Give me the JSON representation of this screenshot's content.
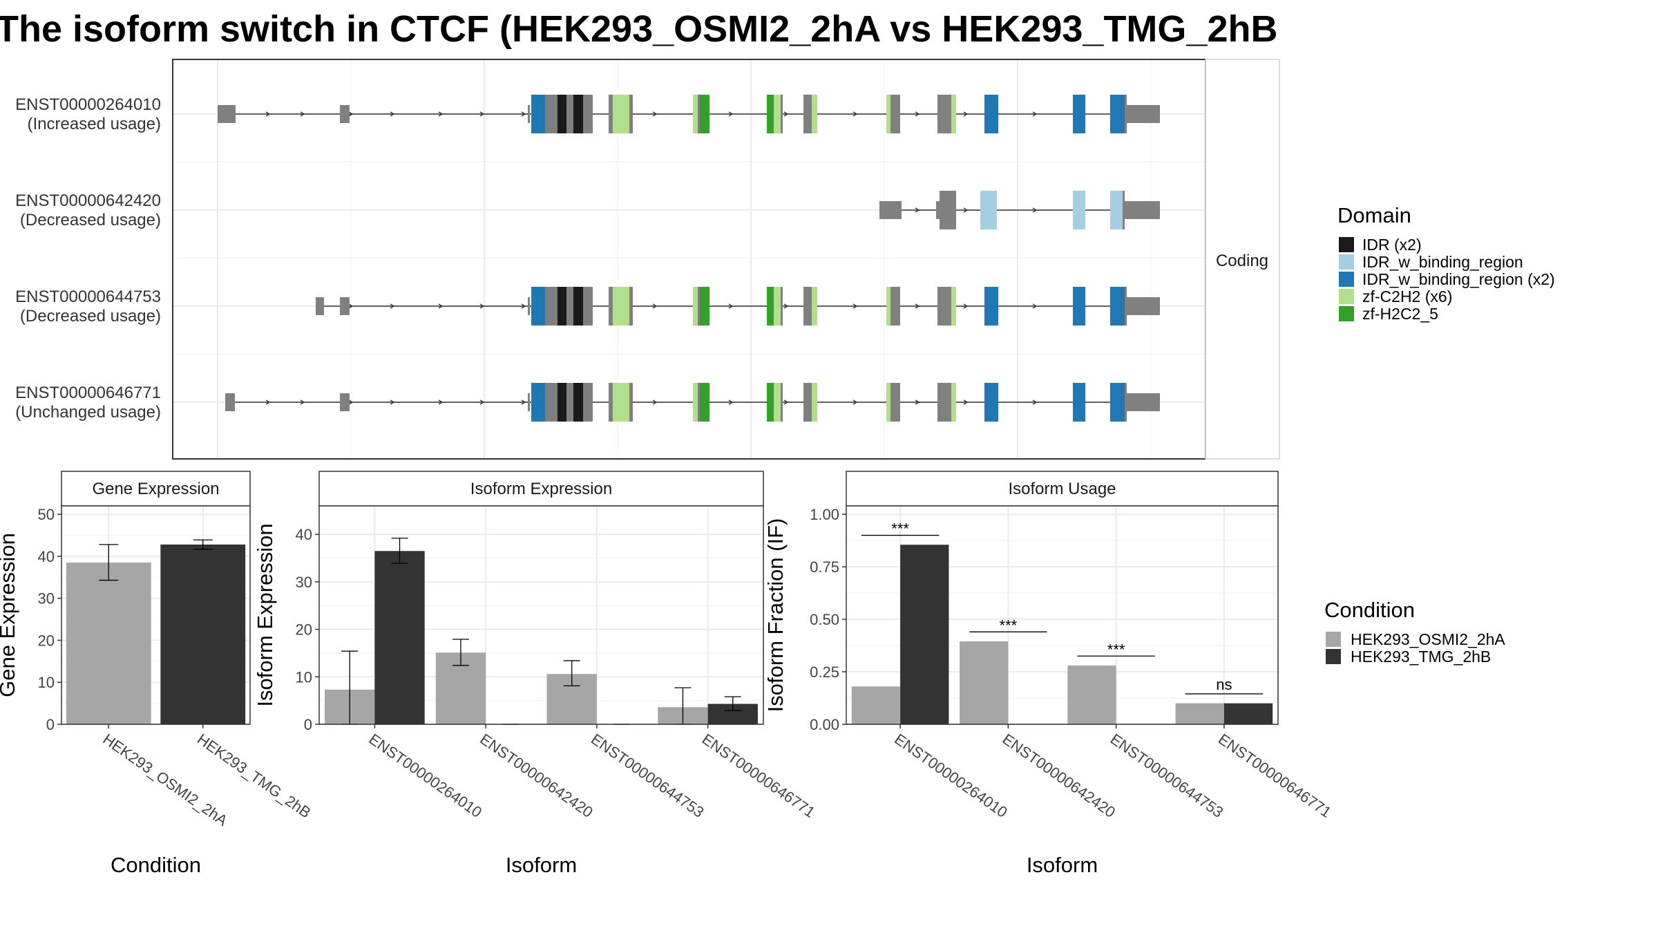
{
  "title": "The isoform switch in CTCF (HEK293_OSMI2_2hA vs HEK293_TMG_2hB",
  "colors": {
    "osmi": "#a6a6a6",
    "tmg": "#333333",
    "utr": "#808080",
    "IDR": "#1a1a1a",
    "IDR_w_binding_region": "#a6cee3",
    "IDR_w_binding_region_x2": "#1f78b4",
    "zf_C2H2": "#b2df8a",
    "zf_H2C2_5": "#33a02c"
  },
  "structure": {
    "strip_label": "Coding",
    "isoforms": [
      {
        "id": "ENST00000264010",
        "usage": "(Increased usage)"
      },
      {
        "id": "ENST00000642420",
        "usage": "(Decreased usage)"
      },
      {
        "id": "ENST00000644753",
        "usage": "(Decreased usage)"
      },
      {
        "id": "ENST00000646771",
        "usage": "(Unchanged usage)"
      }
    ]
  },
  "legend_domain": {
    "title": "Domain",
    "items": [
      {
        "label": "IDR (x2)",
        "color": "#1a1a1a"
      },
      {
        "label": "IDR_w_binding_region",
        "color": "#a6cee3"
      },
      {
        "label": "IDR_w_binding_region (x2)",
        "color": "#1f78b4"
      },
      {
        "label": "zf-C2H2 (x6)",
        "color": "#b2df8a"
      },
      {
        "label": "zf-H2C2_5",
        "color": "#33a02c"
      }
    ]
  },
  "legend_condition": {
    "title": "Condition",
    "items": [
      {
        "label": "HEK293_OSMI2_2hA",
        "color": "#a6a6a6"
      },
      {
        "label": "HEK293_TMG_2hB",
        "color": "#333333"
      }
    ]
  },
  "chart_data": [
    {
      "type": "bar",
      "strip": "Gene Expression",
      "xlabel": "Condition",
      "ylabel": "Gene Expression",
      "ylim": [
        0,
        52
      ],
      "yticks": [
        "0",
        "10",
        "20",
        "30",
        "40",
        "50"
      ],
      "categories": [
        "HEK293_OSMI2_2hA",
        "HEK293_TMG_2hB"
      ],
      "values": [
        38.5,
        42.8
      ],
      "err_low": [
        34.3,
        41.7
      ],
      "err_high": [
        42.8,
        43.9
      ]
    },
    {
      "type": "bar",
      "strip": "Isoform Expression",
      "xlabel": "Isoform",
      "ylabel": "Isoform Expression",
      "ylim": [
        0,
        46
      ],
      "yticks": [
        "0",
        "10",
        "20",
        "30",
        "40"
      ],
      "categories": [
        "ENST00000264010",
        "ENST00000642420",
        "ENST00000644753",
        "ENST00000646771"
      ],
      "series": [
        {
          "name": "HEK293_OSMI2_2hA",
          "values": [
            7.3,
            15.1,
            10.6,
            3.6
          ],
          "err_low": [
            0,
            12.4,
            8.1,
            0
          ],
          "err_high": [
            15.4,
            17.9,
            13.4,
            7.7
          ]
        },
        {
          "name": "HEK293_TMG_2hB",
          "values": [
            36.5,
            0,
            0,
            4.3
          ],
          "err_low": [
            33.9,
            0,
            0,
            2.9
          ],
          "err_high": [
            39.2,
            0,
            0,
            5.8
          ]
        }
      ]
    },
    {
      "type": "bar",
      "strip": "Isoform Usage",
      "xlabel": "Isoform",
      "ylabel": "Isoform Fraction (IF)",
      "ylim": [
        0,
        1.04
      ],
      "yticks": [
        "0.00",
        "0.25",
        "0.50",
        "0.75",
        "1.00"
      ],
      "categories": [
        "ENST00000264010",
        "ENST00000642420",
        "ENST00000644753",
        "ENST00000646771"
      ],
      "series": [
        {
          "name": "HEK293_OSMI2_2hA",
          "values": [
            0.18,
            0.395,
            0.28,
            0.1
          ]
        },
        {
          "name": "HEK293_TMG_2hB",
          "values": [
            0.855,
            0,
            0,
            0.1
          ]
        }
      ],
      "significance": [
        {
          "label": "***",
          "y": 0.9
        },
        {
          "label": "***",
          "y": 0.44
        },
        {
          "label": "***",
          "y": 0.325
        },
        {
          "label": "ns",
          "y": 0.145
        }
      ]
    }
  ]
}
